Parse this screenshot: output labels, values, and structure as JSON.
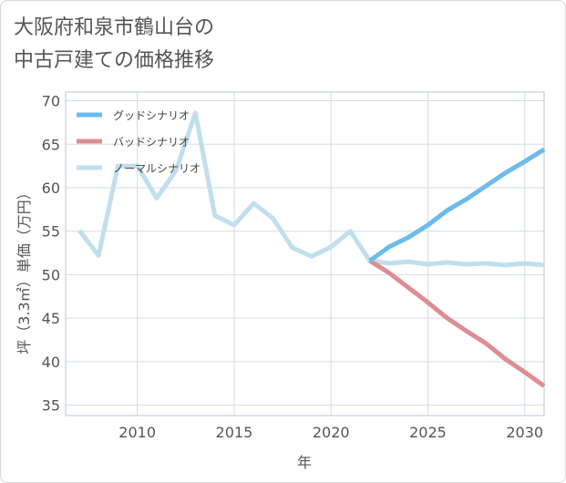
{
  "page": {
    "title_line1": "大阪府和泉市鶴山台の",
    "title_line2": "中古戸建ての価格推移"
  },
  "chart_data": {
    "type": "line",
    "xlabel": "年",
    "ylabel": "坪（3.3㎡）単価（万円）",
    "xlim": [
      2006.3,
      2031
    ],
    "ylim": [
      33.8,
      71
    ],
    "xticks": [
      2010,
      2015,
      2020,
      2025,
      2030
    ],
    "yticks": [
      35,
      40,
      45,
      50,
      55,
      60,
      65,
      70
    ],
    "grid": true,
    "legend_position": "top-left",
    "series": [
      {
        "name": "グッドシナリオ",
        "color": "#6bbcec",
        "x": [
          2022,
          2023,
          2024,
          2025,
          2026,
          2027,
          2028,
          2029,
          2030,
          2031
        ],
        "y": [
          51.6,
          53.2,
          54.3,
          55.7,
          57.4,
          58.7,
          60.2,
          61.7,
          63.0,
          64.4
        ]
      },
      {
        "name": "バッドシナリオ",
        "color": "#dc8e94",
        "x": [
          2022,
          2023,
          2024,
          2025,
          2026,
          2027,
          2028,
          2029,
          2030,
          2031
        ],
        "y": [
          51.6,
          50.2,
          48.5,
          46.8,
          45.0,
          43.5,
          42.1,
          40.3,
          38.8,
          37.2
        ]
      },
      {
        "name": "ノーマルシナリオ",
        "color": "#c0dfec",
        "x": [
          2007,
          2008,
          2009,
          2010,
          2011,
          2012,
          2013,
          2014,
          2015,
          2016,
          2017,
          2018,
          2019,
          2020,
          2021,
          2022,
          2023,
          2024,
          2025,
          2026,
          2027,
          2028,
          2029,
          2030,
          2031
        ],
        "y": [
          55.1,
          52.2,
          62.5,
          62.5,
          58.8,
          62.0,
          68.6,
          56.8,
          55.7,
          58.2,
          56.5,
          53.1,
          52.1,
          53.2,
          55.0,
          51.6,
          51.3,
          51.5,
          51.2,
          51.4,
          51.2,
          51.3,
          51.1,
          51.3,
          51.1
        ]
      }
    ]
  }
}
